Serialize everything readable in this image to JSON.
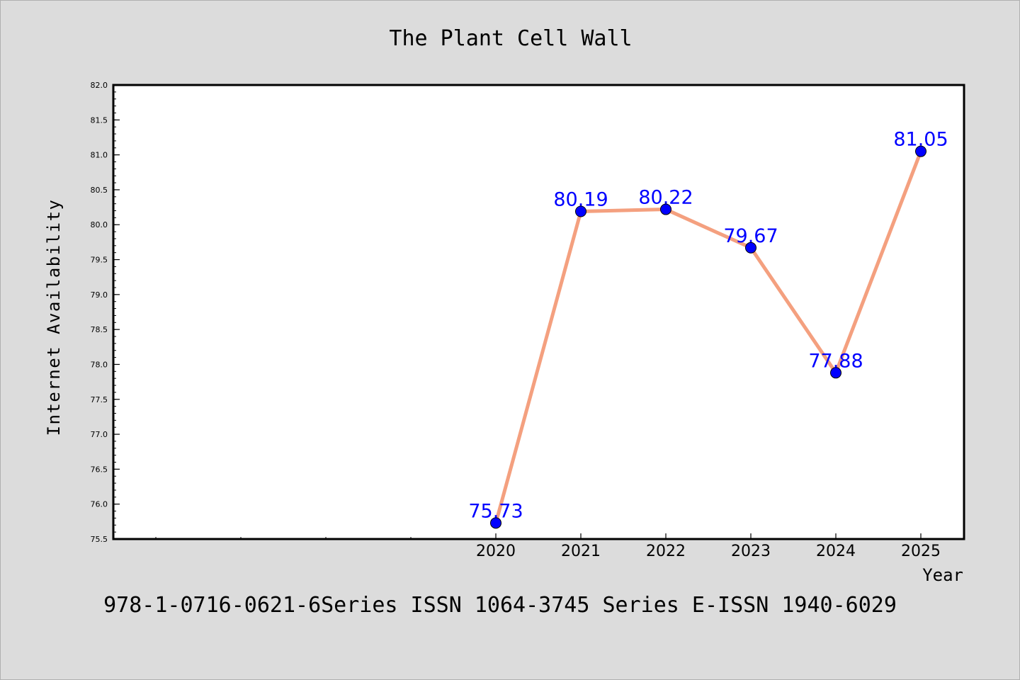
{
  "chart_data": {
    "type": "line",
    "title": "The Plant Cell Wall",
    "xlabel": "Year",
    "ylabel": "Internet Availability",
    "x": [
      "2020",
      "2021",
      "2022",
      "2023",
      "2024",
      "2025"
    ],
    "series": [
      {
        "values": [
          75.73,
          80.19,
          80.22,
          79.67,
          77.88,
          81.05
        ]
      }
    ],
    "data_labels": [
      "75.73",
      "80.19",
      "80.22",
      "79.67",
      "77.88",
      "81.05"
    ],
    "ylim": [
      75.5,
      82.0
    ],
    "yticks": [
      "75.5",
      "76.0",
      "76.5",
      "77.0",
      "77.5",
      "78.0",
      "78.5",
      "79.0",
      "79.5",
      "80.0",
      "80.5",
      "81.0",
      "81.5",
      "82.0"
    ],
    "grid": false,
    "line_color": "#f4a07f",
    "marker_color": "#0000ff",
    "label_color": "#0000ff"
  },
  "footer": "978-1-0716-0621-6Series ISSN 1064-3745 Series E-ISSN 1940-6029"
}
